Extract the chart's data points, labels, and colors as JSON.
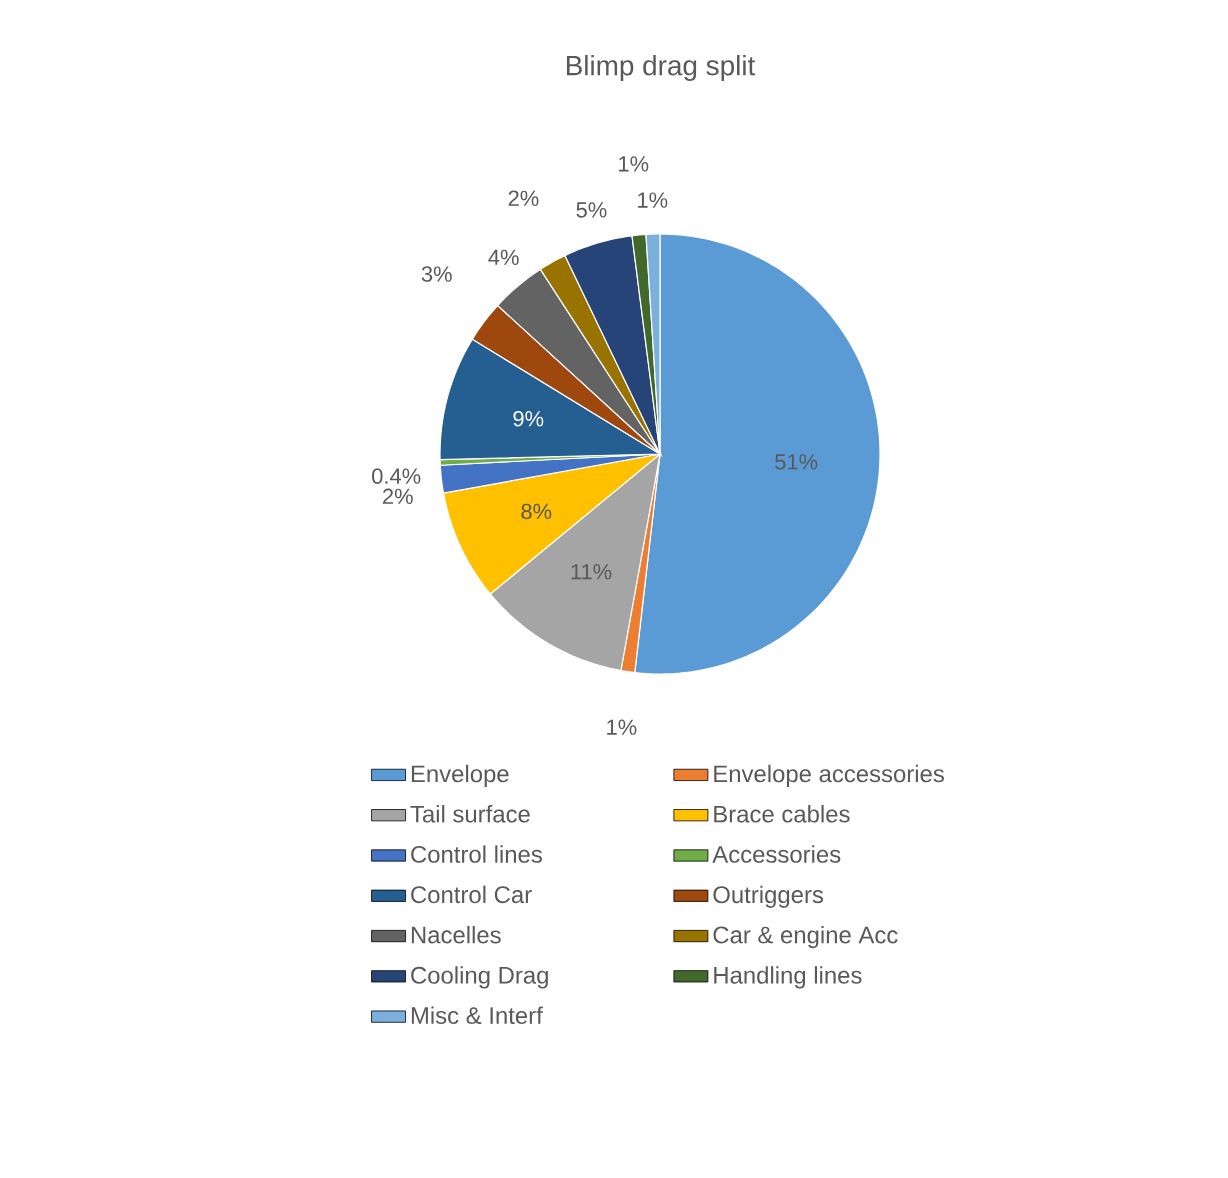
{
  "chart_data": {
    "type": "pie",
    "title": "Blimp drag split",
    "categories": [
      "Envelope",
      "Envelope accessories",
      "Tail surface",
      "Brace cables",
      "Control lines",
      "Accessories",
      "Control Car",
      "Outriggers",
      "Nacelles",
      "Car & engine Acc",
      "Cooling Drag",
      "Handling lines",
      "Misc & Interf"
    ],
    "values": [
      51,
      1,
      11,
      8,
      2,
      0.4,
      9,
      3,
      4,
      2,
      5,
      1,
      1
    ],
    "value_labels": [
      "51%",
      "1%",
      "11%",
      "8%",
      "2%",
      "0.4%",
      "9%",
      "3%",
      "4%",
      "2%",
      "5%",
      "1%",
      "1%"
    ],
    "colors": [
      "#5b9bd5",
      "#ed7d31",
      "#a5a5a5",
      "#ffc000",
      "#4472c4",
      "#70ad47",
      "#255e91",
      "#9e480e",
      "#636363",
      "#997300",
      "#264478",
      "#43682b",
      "#7cafdd"
    ],
    "legend": "bottom"
  }
}
